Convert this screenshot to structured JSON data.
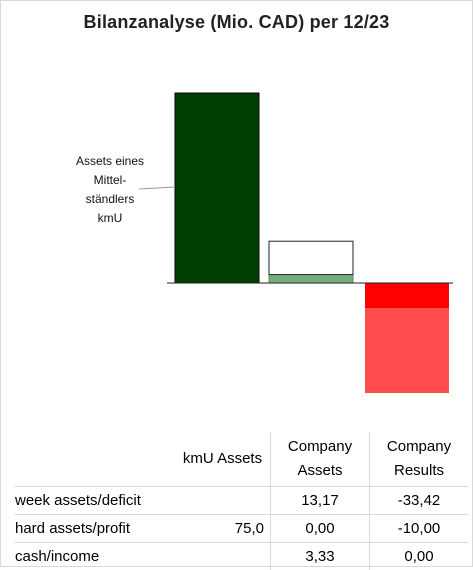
{
  "title": "Bilanzanalyse  (Mio. CAD) per 12/23",
  "annotation": [
    "Assets eines",
    "Mittel-",
    "ständlers",
    "kmU"
  ],
  "chart_data": {
    "type": "bar",
    "stacked": true,
    "title": "Bilanzanalyse  (Mio. CAD) per 12/23",
    "categories": [
      "kmU Assets",
      "Company Assets",
      "Company Results"
    ],
    "series": [
      {
        "name": "week assets/deficit",
        "values": [
          null,
          13.17,
          -33.42
        ]
      },
      {
        "name": "hard assets/profit",
        "values": [
          75.0,
          0.0,
          -10.0
        ]
      },
      {
        "name": "cash/income",
        "values": [
          null,
          3.33,
          0.0
        ]
      }
    ],
    "colors": {
      "kmU_hard": "#003d00",
      "assets_cash": "#79ac79",
      "assets_week": "#ffffff",
      "results_profit": "#ff0000",
      "results_deficit": "#ff4c4c"
    },
    "annotation": "Assets eines Mittelständlers kmU",
    "grid": false,
    "legend": "none"
  },
  "table": {
    "header": [
      "",
      "kmU Assets",
      "Company Assets",
      "Company Results"
    ],
    "rows": [
      {
        "label": "week assets/deficit",
        "kmu": "",
        "assets": "13,17",
        "results": "-33,42"
      },
      {
        "label": "hard assets/profit",
        "kmu": "75,0",
        "assets": "0,00",
        "results": "-10,00"
      },
      {
        "label": "cash/income",
        "kmu": "",
        "assets": "3,33",
        "results": "0,00"
      }
    ]
  }
}
